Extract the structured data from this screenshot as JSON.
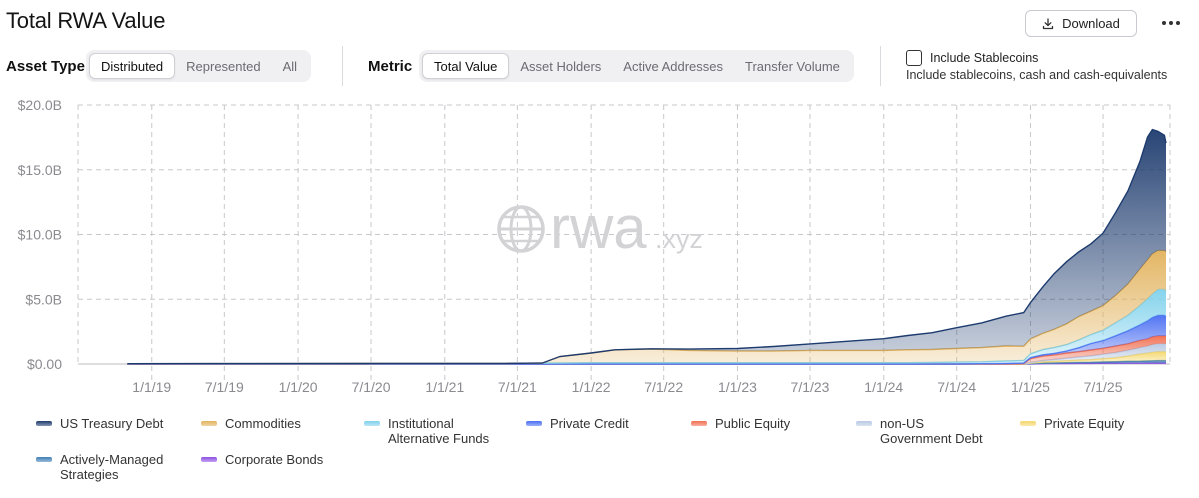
{
  "title": "Total RWA Value",
  "header": {
    "download_label": "Download",
    "more_icon": "more-dots-icon",
    "download_icon": "download-icon"
  },
  "filters": {
    "asset_type": {
      "label": "Asset Type",
      "options": [
        "Distributed",
        "Represented",
        "All"
      ],
      "selected": "Distributed"
    },
    "metric": {
      "label": "Metric",
      "options": [
        "Total Value",
        "Asset Holders",
        "Active Addresses",
        "Transfer Volume"
      ],
      "selected": "Total Value"
    },
    "stablecoins": {
      "checked": false,
      "label": "Include Stablecoins",
      "description": "Include stablecoins, cash and cash-equivalents"
    }
  },
  "watermark": {
    "main": "rwa",
    "suffix": ".xyz"
  },
  "colors": {
    "us_treasury": "#1d3b6e",
    "commodities": "#e2b25c",
    "inst_alt": "#7fd1ec",
    "private_credit": "#4a6ef2",
    "public_equity": "#f06d4f",
    "nonus_gov": "#b8c9e3",
    "private_equity": "#f4d76b",
    "active_mgd": "#3f7fb6",
    "corp_bonds": "#8b4fe4"
  },
  "legend": [
    {
      "key": "us_treasury",
      "label": "US Treasury Debt"
    },
    {
      "key": "commodities",
      "label": "Commodities"
    },
    {
      "key": "inst_alt",
      "label": "Institutional\nAlternative Funds"
    },
    {
      "key": "private_credit",
      "label": "Private Credit"
    },
    {
      "key": "public_equity",
      "label": "Public Equity"
    },
    {
      "key": "nonus_gov",
      "label": "non-US\nGovernment Debt"
    },
    {
      "key": "private_equity",
      "label": "Private Equity"
    },
    {
      "key": "active_mgd",
      "label": "Actively-Managed\nStrategies"
    },
    {
      "key": "corp_bonds",
      "label": "Corporate Bonds"
    }
  ],
  "chart_data": {
    "type": "area",
    "stacked": true,
    "title": "Total RWA Value",
    "ylim": [
      0,
      20
    ],
    "y_unit": "B",
    "yticks": [
      0,
      5,
      10,
      15,
      20
    ],
    "ytick_labels": [
      "$0.00",
      "$5.0B",
      "$10.0B",
      "$15.0B",
      "$20.0B"
    ],
    "xlim": [
      "2018-07-01",
      "2025-12-15"
    ],
    "xticks": [
      "2019-01-01",
      "2019-07-01",
      "2020-01-01",
      "2020-07-01",
      "2021-01-01",
      "2021-07-01",
      "2022-01-01",
      "2022-07-01",
      "2023-01-01",
      "2023-07-01",
      "2024-01-01",
      "2024-07-01",
      "2025-01-01",
      "2025-07-01"
    ],
    "xtick_labels": [
      "1/1/19",
      "7/1/19",
      "1/1/20",
      "7/1/20",
      "1/1/21",
      "7/1/21",
      "1/1/22",
      "7/1/22",
      "1/1/23",
      "7/1/23",
      "1/1/24",
      "7/1/24",
      "1/1/25",
      "7/1/25"
    ],
    "grid": true,
    "legend_position": "bottom",
    "x": [
      "2018-11-01",
      "2019-06-01",
      "2020-06-01",
      "2021-01-01",
      "2021-06-01",
      "2021-09-01",
      "2021-10-15",
      "2022-01-01",
      "2022-03-01",
      "2022-06-01",
      "2022-09-01",
      "2023-01-01",
      "2023-04-01",
      "2023-07-01",
      "2023-10-01",
      "2024-01-01",
      "2024-03-01",
      "2024-05-01",
      "2024-07-01",
      "2024-09-01",
      "2024-11-01",
      "2024-12-15",
      "2025-01-01",
      "2025-02-01",
      "2025-03-01",
      "2025-04-01",
      "2025-05-01",
      "2025-06-01",
      "2025-07-01",
      "2025-08-01",
      "2025-09-01",
      "2025-10-01",
      "2025-10-20",
      "2025-11-01",
      "2025-11-15",
      "2025-12-01",
      "2025-12-05"
    ],
    "series": [
      {
        "name": "Corporate Bonds",
        "key": "corp_bonds",
        "values": [
          0,
          0,
          0,
          0,
          0,
          0,
          0,
          0,
          0,
          0,
          0,
          0,
          0,
          0,
          0,
          0,
          0,
          0,
          0,
          0,
          0,
          0,
          0,
          0.02,
          0.03,
          0.04,
          0.05,
          0.05,
          0.06,
          0.06,
          0.07,
          0.07,
          0.08,
          0.08,
          0.08,
          0.08,
          0.08
        ]
      },
      {
        "name": "Actively-Managed Strategies",
        "key": "active_mgd",
        "values": [
          0,
          0,
          0,
          0,
          0,
          0,
          0,
          0,
          0,
          0,
          0,
          0,
          0,
          0,
          0,
          0,
          0,
          0,
          0,
          0,
          0,
          0,
          0.02,
          0.04,
          0.05,
          0.06,
          0.07,
          0.08,
          0.1,
          0.12,
          0.14,
          0.15,
          0.16,
          0.17,
          0.18,
          0.18,
          0.18
        ]
      },
      {
        "name": "Private Equity",
        "key": "private_equity",
        "values": [
          0,
          0,
          0,
          0,
          0,
          0,
          0,
          0,
          0,
          0,
          0,
          0,
          0,
          0,
          0,
          0,
          0,
          0,
          0,
          0,
          0,
          0,
          0.05,
          0.1,
          0.12,
          0.15,
          0.18,
          0.2,
          0.25,
          0.3,
          0.4,
          0.55,
          0.6,
          0.65,
          0.7,
          0.7,
          0.7
        ]
      },
      {
        "name": "non-US Government Debt",
        "key": "nonus_gov",
        "values": [
          0,
          0,
          0,
          0,
          0,
          0,
          0,
          0,
          0,
          0,
          0,
          0,
          0,
          0,
          0,
          0,
          0,
          0,
          0,
          0,
          0,
          0.02,
          0.05,
          0.1,
          0.15,
          0.2,
          0.25,
          0.3,
          0.35,
          0.4,
          0.45,
          0.5,
          0.55,
          0.6,
          0.6,
          0.6,
          0.6
        ]
      },
      {
        "name": "Public Equity",
        "key": "public_equity",
        "values": [
          0,
          0,
          0,
          0,
          0,
          0,
          0,
          0,
          0,
          0,
          0,
          0,
          0,
          0,
          0,
          0,
          0,
          0,
          0,
          0,
          0,
          0,
          0.3,
          0.35,
          0.35,
          0.4,
          0.4,
          0.45,
          0.45,
          0.5,
          0.5,
          0.55,
          0.55,
          0.6,
          0.6,
          0.6,
          0.6
        ]
      },
      {
        "name": "Private Credit",
        "key": "private_credit",
        "values": [
          0,
          0,
          0,
          0,
          0,
          0,
          0,
          0,
          0,
          0,
          0,
          0,
          0,
          0,
          0,
          0,
          0,
          0,
          0,
          0.02,
          0.04,
          0.05,
          0.07,
          0.1,
          0.12,
          0.15,
          0.3,
          0.5,
          0.6,
          0.8,
          1.0,
          1.2,
          1.4,
          1.5,
          1.6,
          1.6,
          1.5
        ]
      },
      {
        "name": "Institutional Alternative Funds",
        "key": "inst_alt",
        "values": [
          0.02,
          0.03,
          0.04,
          0.05,
          0.05,
          0.07,
          0.08,
          0.1,
          0.1,
          0.1,
          0.1,
          0.1,
          0.1,
          0.1,
          0.1,
          0.1,
          0.1,
          0.12,
          0.15,
          0.15,
          0.2,
          0.2,
          0.3,
          0.4,
          0.45,
          0.5,
          0.6,
          0.7,
          0.8,
          1.0,
          1.2,
          1.5,
          1.7,
          1.8,
          2.0,
          2.0,
          2.0
        ]
      },
      {
        "name": "Commodities",
        "key": "commodities",
        "values": [
          0,
          0,
          0,
          0,
          0,
          0,
          0.5,
          0.75,
          1.0,
          1.05,
          0.95,
          0.9,
          0.9,
          0.95,
          0.95,
          0.95,
          1.0,
          1.0,
          1.05,
          1.1,
          1.15,
          1.1,
          1.15,
          1.25,
          1.4,
          1.6,
          1.8,
          1.8,
          1.9,
          2.1,
          2.4,
          2.8,
          3.0,
          3.1,
          3.0,
          3.0,
          3.0
        ]
      },
      {
        "name": "US Treasury Debt",
        "key": "us_treasury",
        "values": [
          0,
          0,
          0,
          0,
          0,
          0,
          0,
          0,
          0,
          0.02,
          0.1,
          0.2,
          0.35,
          0.5,
          0.7,
          0.9,
          1.1,
          1.3,
          1.6,
          1.9,
          2.3,
          2.6,
          2.8,
          3.6,
          4.3,
          4.8,
          5.0,
          5.2,
          5.6,
          6.4,
          7.2,
          8.3,
          9.5,
          9.6,
          9.2,
          8.9,
          8.4
        ]
      }
    ]
  }
}
